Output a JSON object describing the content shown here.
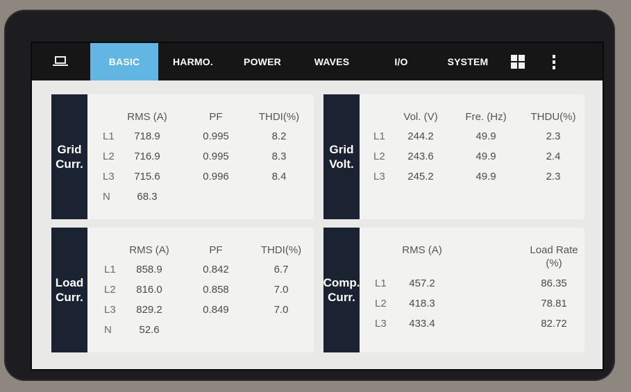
{
  "nav": {
    "tabs": [
      "BASIC",
      "HARMO.",
      "POWER",
      "WAVES",
      "I/O",
      "SYSTEM"
    ],
    "active_tab": "BASIC",
    "icons": [
      "computer-icon",
      "grid-icon",
      "more-vertical-icon"
    ]
  },
  "grid_curr": {
    "label_line1": "Grid",
    "label_line2": "Curr.",
    "headers": [
      "RMS (A)",
      "PF",
      "THDI(%)"
    ],
    "rows": [
      {
        "phase": "L1",
        "rms": "718.9",
        "pf": "0.995",
        "thd": "8.2"
      },
      {
        "phase": "L2",
        "rms": "716.9",
        "pf": "0.995",
        "thd": "8.3"
      },
      {
        "phase": "L3",
        "rms": "715.6",
        "pf": "0.996",
        "thd": "8.4"
      },
      {
        "phase": "N",
        "rms": "68.3",
        "pf": "",
        "thd": ""
      }
    ]
  },
  "grid_volt": {
    "label_line1": "Grid",
    "label_line2": "Volt.",
    "headers": [
      "Vol. (V)",
      "Fre. (Hz)",
      "THDU(%)"
    ],
    "rows": [
      {
        "phase": "L1",
        "vol": "244.2",
        "fre": "49.9",
        "thd": "2.3"
      },
      {
        "phase": "L2",
        "vol": "243.6",
        "fre": "49.9",
        "thd": "2.4"
      },
      {
        "phase": "L3",
        "vol": "245.2",
        "fre": "49.9",
        "thd": "2.3"
      }
    ]
  },
  "load_curr": {
    "label_line1": "Load",
    "label_line2": "Curr.",
    "headers": [
      "RMS (A)",
      "PF",
      "THDI(%)"
    ],
    "rows": [
      {
        "phase": "L1",
        "rms": "858.9",
        "pf": "0.842",
        "thd": "6.7"
      },
      {
        "phase": "L2",
        "rms": "816.0",
        "pf": "0.858",
        "thd": "7.0"
      },
      {
        "phase": "L3",
        "rms": "829.2",
        "pf": "0.849",
        "thd": "7.0"
      },
      {
        "phase": "N",
        "rms": "52.6",
        "pf": "",
        "thd": ""
      }
    ]
  },
  "comp_curr": {
    "label_line1": "Comp.",
    "label_line2": "Curr.",
    "headers": [
      "RMS (A)",
      "Load Rate",
      "(%)"
    ],
    "rows": [
      {
        "phase": "L1",
        "rms": "457.2",
        "rate": "86.35"
      },
      {
        "phase": "L2",
        "rms": "418.3",
        "rate": "78.81"
      },
      {
        "phase": "L3",
        "rms": "433.4",
        "rate": "82.72"
      }
    ]
  }
}
